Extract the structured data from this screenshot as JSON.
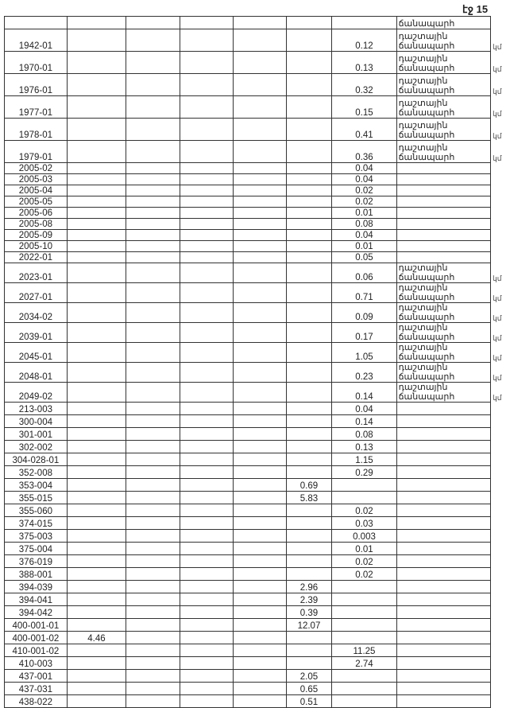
{
  "page_number": "էջ 15",
  "header_row": {
    "c8": "ճանապարհ"
  },
  "road_label": "դաշտային ճանապարհ",
  "margin_mark": "կմ",
  "rows": [
    {
      "g": "tall1",
      "c1": "1942-01",
      "c7": "0.12",
      "road": true
    },
    {
      "g": "tall1",
      "c1": "1970-01",
      "c7": "0.13",
      "road": true
    },
    {
      "g": "tall1",
      "c1": "1976-01",
      "c7": "0.32",
      "road": true
    },
    {
      "g": "tall1",
      "c1": "1977-01",
      "c7": "0.15",
      "road": true
    },
    {
      "g": "tall1",
      "c1": "1978-01",
      "c7": "0.41",
      "road": true
    },
    {
      "g": "tall1",
      "c1": "1979-01",
      "c7": "0.36",
      "road": true
    },
    {
      "g": "short1",
      "c1": "2005-02",
      "c7": "0.04"
    },
    {
      "g": "short1",
      "c1": "2005-03",
      "c7": "0.04"
    },
    {
      "g": "short1",
      "c1": "2005-04",
      "c7": "0.02"
    },
    {
      "g": "short1",
      "c1": "2005-05",
      "c7": "0.02"
    },
    {
      "g": "short1",
      "c1": "2005-06",
      "c7": "0.01"
    },
    {
      "g": "short1",
      "c1": "2005-08",
      "c7": "0.08"
    },
    {
      "g": "short1",
      "c1": "2005-09",
      "c7": "0.04"
    },
    {
      "g": "short1",
      "c1": "2005-10",
      "c7": "0.01"
    },
    {
      "g": "short1",
      "c1": "2022-01",
      "c7": "0.05"
    },
    {
      "g": "tall2",
      "c1": "2023-01",
      "c7": "0.06",
      "road": true
    },
    {
      "g": "tall2",
      "c1": "2027-01",
      "c7": "0.71",
      "road": true
    },
    {
      "g": "tall2",
      "c1": "2034-02",
      "c7": "0.09",
      "road": true
    },
    {
      "g": "tall2",
      "c1": "2039-01",
      "c7": "0.17",
      "road": true
    },
    {
      "g": "tall2",
      "c1": "2045-01",
      "c7": "1.05",
      "road": true
    },
    {
      "g": "tall2",
      "c1": "2048-01",
      "c7": "0.23",
      "road": true
    },
    {
      "g": "tall2",
      "c1": "2049-02",
      "c7": "0.14",
      "road": true
    },
    {
      "g": "short2",
      "c1": "213-003",
      "c7": "0.04"
    },
    {
      "g": "short2",
      "c1": "300-004",
      "c7": "0.14"
    },
    {
      "g": "short2",
      "c1": "301-001",
      "c7": "0.08"
    },
    {
      "g": "short2",
      "c1": "302-002",
      "c7": "0.13"
    },
    {
      "g": "short2",
      "c1": "304-028-01",
      "c7": "1.15"
    },
    {
      "g": "short2",
      "c1": "352-008",
      "c7": "0.29"
    },
    {
      "g": "short2",
      "c1": "353-004",
      "c6": "0.69"
    },
    {
      "g": "short2",
      "c1": "355-015",
      "c6": "5.83"
    },
    {
      "g": "short2",
      "c1": "355-060",
      "c7": "0.02"
    },
    {
      "g": "short2",
      "c1": "374-015",
      "c7": "0.03"
    },
    {
      "g": "short2",
      "c1": "375-003",
      "c7": "0.003"
    },
    {
      "g": "short2",
      "c1": "375-004",
      "c7": "0.01"
    },
    {
      "g": "short2",
      "c1": "376-019",
      "c7": "0.02"
    },
    {
      "g": "short2",
      "c1": "388-001",
      "c7": "0.02"
    },
    {
      "g": "short2",
      "c1": "394-039",
      "c6": "2.96"
    },
    {
      "g": "short2",
      "c1": "394-041",
      "c6": "2.39"
    },
    {
      "g": "short2",
      "c1": "394-042",
      "c6": "0.39"
    },
    {
      "g": "short2",
      "c1": "400-001-01",
      "c6": "12.07"
    },
    {
      "g": "short2",
      "c1": "400-001-02",
      "c2": "4.46"
    },
    {
      "g": "short2",
      "c1": "410-001-02",
      "c7": "11.25"
    },
    {
      "g": "short2",
      "c1": "410-003",
      "c7": "2.74"
    },
    {
      "g": "short2",
      "c1": "437-001",
      "c6": "2.05"
    },
    {
      "g": "short2",
      "c1": "437-031",
      "c6": "0.65"
    },
    {
      "g": "short2",
      "c1": "438-022",
      "c6": "0.51"
    }
  ]
}
